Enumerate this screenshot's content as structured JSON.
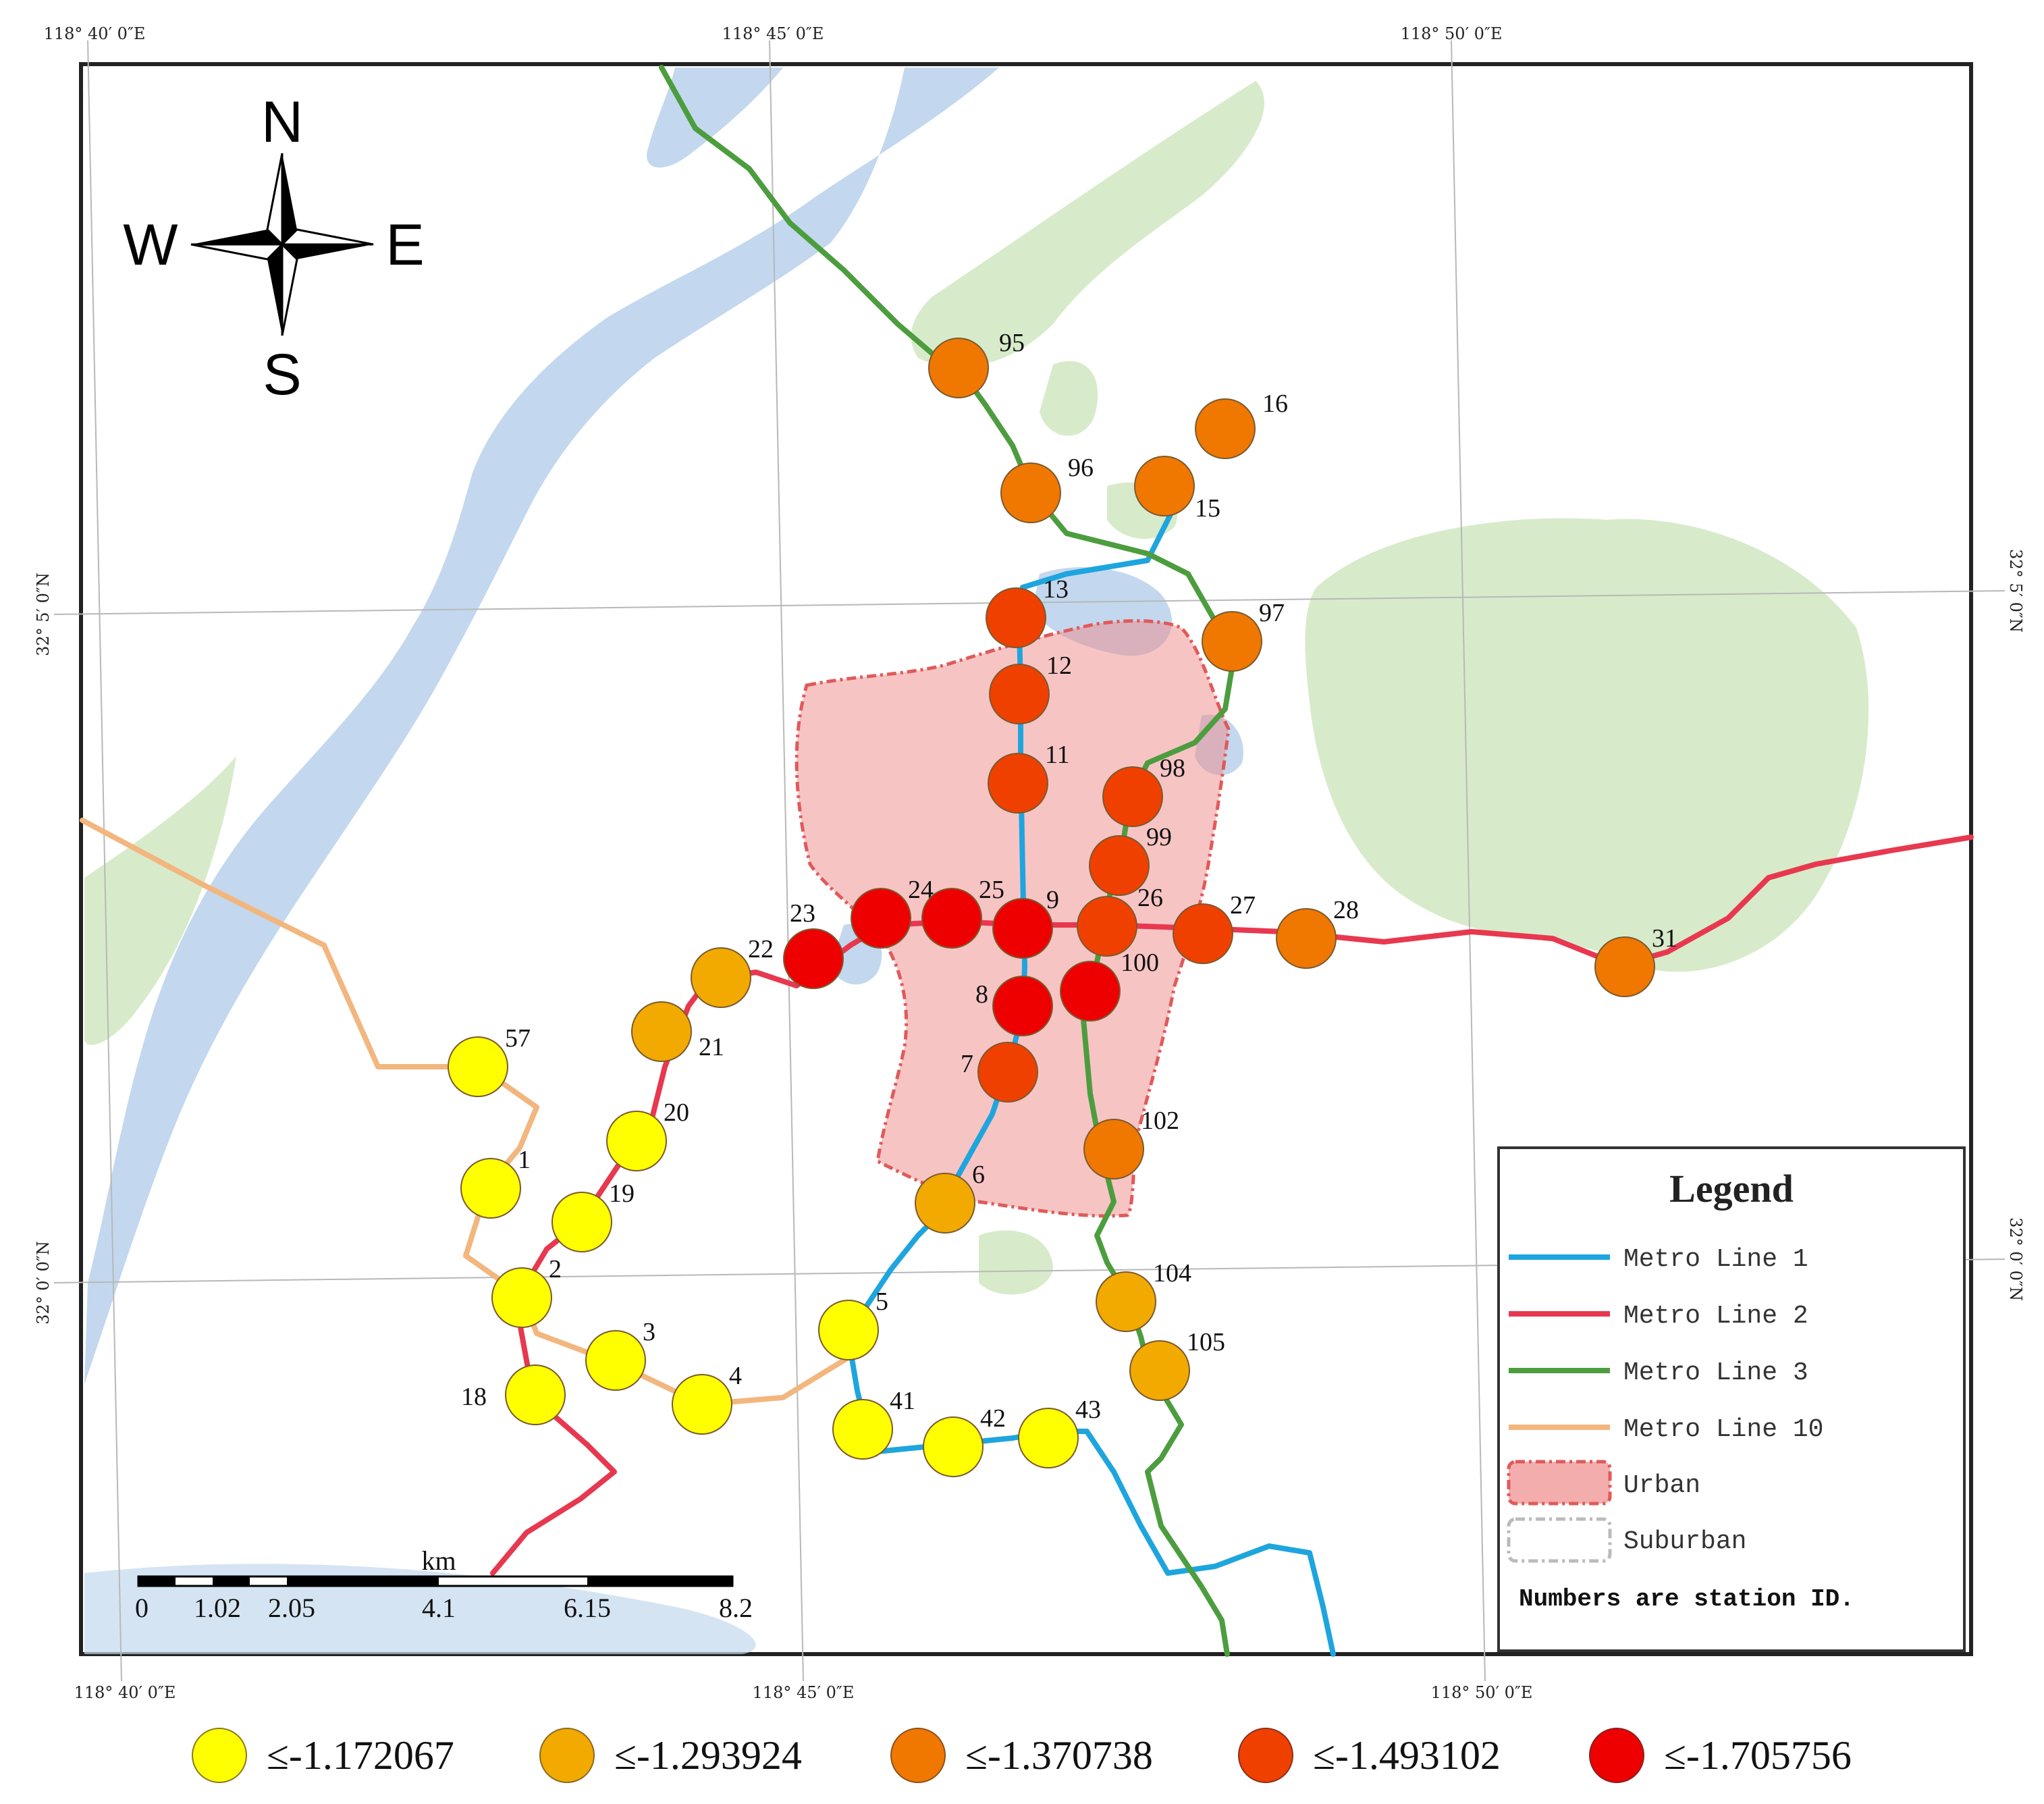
{
  "map": {
    "coordinates": {
      "top": [
        "118° 40′ 0″E",
        "118° 45′ 0″E",
        "118° 50′ 0″E"
      ],
      "bottom": [
        "118° 40′ 0″E",
        "118° 45′ 0″E",
        "118° 50′ 0″E"
      ],
      "left": [
        "32° 5′ 0″N",
        "32° 0′ 0″N"
      ],
      "right": [
        "32° 5′ 0″N",
        "32° 0′ 0″N"
      ]
    },
    "compass": {
      "n": "N",
      "s": "S",
      "e": "E",
      "w": "W"
    },
    "scale_bar": {
      "unit": "km",
      "ticks": [
        "0",
        "1.02",
        "2.05",
        "4.1",
        "6.15",
        "8.2"
      ]
    },
    "legend": {
      "title": "Legend",
      "items": [
        {
          "label": "Metro Line 1",
          "color": "#1ea5de"
        },
        {
          "label": "Metro Line 2",
          "color": "#e8384f"
        },
        {
          "label": "Metro Line 3",
          "color": "#4c9d3e"
        },
        {
          "label": "Metro Line 10",
          "color": "#f2b67e"
        },
        {
          "label": "Urban",
          "color": "#f08a8a"
        },
        {
          "label": "Suburban",
          "color": "#bbbbbb"
        }
      ],
      "note": "Numbers are station ID."
    },
    "classes": [
      {
        "label": "≤-1.172067",
        "color": "#ffff00"
      },
      {
        "label": "≤-1.293924",
        "color": "#f2aa00"
      },
      {
        "label": "≤-1.370738",
        "color": "#f07800"
      },
      {
        "label": "≤-1.493102",
        "color": "#f04000"
      },
      {
        "label": "≤-1.705756",
        "color": "#ee0000"
      }
    ],
    "stations": [
      {
        "id": "95",
        "class": 2
      },
      {
        "id": "16",
        "class": 2
      },
      {
        "id": "96",
        "class": 2
      },
      {
        "id": "15",
        "class": 2
      },
      {
        "id": "13",
        "class": 3
      },
      {
        "id": "97",
        "class": 2
      },
      {
        "id": "12",
        "class": 3
      },
      {
        "id": "11",
        "class": 3
      },
      {
        "id": "98",
        "class": 3
      },
      {
        "id": "99",
        "class": 3
      },
      {
        "id": "24",
        "class": 4
      },
      {
        "id": "25",
        "class": 4
      },
      {
        "id": "9",
        "class": 4
      },
      {
        "id": "26",
        "class": 3
      },
      {
        "id": "27",
        "class": 3
      },
      {
        "id": "28",
        "class": 2
      },
      {
        "id": "31",
        "class": 2
      },
      {
        "id": "23",
        "class": 4
      },
      {
        "id": "22",
        "class": 1
      },
      {
        "id": "100",
        "class": 4
      },
      {
        "id": "8",
        "class": 4
      },
      {
        "id": "21",
        "class": 1
      },
      {
        "id": "57",
        "class": 0
      },
      {
        "id": "7",
        "class": 3
      },
      {
        "id": "20",
        "class": 0
      },
      {
        "id": "102",
        "class": 2
      },
      {
        "id": "1",
        "class": 0
      },
      {
        "id": "6",
        "class": 1
      },
      {
        "id": "19",
        "class": 0
      },
      {
        "id": "104",
        "class": 1
      },
      {
        "id": "2",
        "class": 0
      },
      {
        "id": "5",
        "class": 0
      },
      {
        "id": "3",
        "class": 0
      },
      {
        "id": "105",
        "class": 1
      },
      {
        "id": "4",
        "class": 0
      },
      {
        "id": "18",
        "class": 0
      },
      {
        "id": "41",
        "class": 0
      },
      {
        "id": "42",
        "class": 0
      },
      {
        "id": "43",
        "class": 0
      }
    ]
  }
}
